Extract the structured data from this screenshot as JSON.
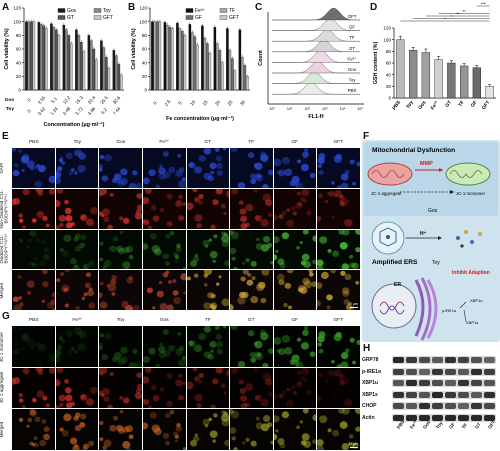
{
  "panel_labels": [
    "A",
    "B",
    "C",
    "D",
    "E",
    "F",
    "G",
    "H"
  ],
  "colors": {
    "gos": "#1b1b1b",
    "toy": "#8a8a8a",
    "gt": "#555555",
    "gft": "#c8c8c8",
    "fe": "#111111",
    "gf": "#707070",
    "tf": "#a8a8a8",
    "bar_d": [
      "#b9b9b9",
      "#8c8c8c",
      "#a1a1a1",
      "#d0d0d0",
      "#777777",
      "#959595",
      "#6a6a6a",
      "#e2e2e2"
    ],
    "dapi": "#1a2f9c",
    "red": "#b8261f",
    "green": "#3a8a2a"
  },
  "chart_data": [
    {
      "panel": "A",
      "type": "bar",
      "ylabel": "Cell viability (%)",
      "xlabel": "Concentration (μg·ml⁻¹)",
      "ylim": [
        0,
        120
      ],
      "yticks": [
        0,
        20,
        40,
        60,
        80,
        100,
        120
      ],
      "row_labels": [
        "Gos",
        "Toy"
      ],
      "gos_ticks": [
        "0",
        "2.55",
        "5.1",
        "10.2",
        "15.3",
        "20.4",
        "25.5",
        "30.6"
      ],
      "toy_ticks": [
        "0",
        "0.62",
        "1.24",
        "2.48",
        "3.72",
        "4.96",
        "6.2",
        "7.44"
      ],
      "legend": [
        "Gos",
        "Toy",
        "GT",
        "GFT"
      ],
      "series": [
        {
          "name": "Gos",
          "values": [
            100,
            99,
            97,
            95,
            88,
            80,
            72,
            58
          ]
        },
        {
          "name": "Toy",
          "values": [
            100,
            96,
            92,
            88,
            80,
            72,
            62,
            50
          ]
        },
        {
          "name": "GT",
          "values": [
            100,
            94,
            88,
            80,
            70,
            60,
            48,
            38
          ]
        },
        {
          "name": "GFT",
          "values": [
            100,
            90,
            80,
            68,
            56,
            44,
            32,
            22
          ]
        }
      ]
    },
    {
      "panel": "B",
      "type": "bar",
      "ylabel": "Cell viability (%)",
      "xlabel": "Fe concentration (μg·ml⁻¹)",
      "ylim": [
        0,
        120
      ],
      "yticks": [
        0,
        20,
        40,
        60,
        80,
        100,
        120
      ],
      "categories": [
        "0",
        "2.5",
        "5",
        "10",
        "15",
        "20",
        "25",
        "30"
      ],
      "legend": [
        "Fe³⁺",
        "TF",
        "GF",
        "GFT"
      ],
      "series": [
        {
          "name": "Fe³⁺",
          "values": [
            100,
            99,
            98,
            96,
            94,
            92,
            90,
            88
          ]
        },
        {
          "name": "TF",
          "values": [
            100,
            95,
            90,
            84,
            76,
            68,
            58,
            48
          ]
        },
        {
          "name": "GF",
          "values": [
            100,
            92,
            86,
            78,
            68,
            58,
            46,
            36
          ]
        },
        {
          "name": "GFT",
          "values": [
            100,
            90,
            80,
            66,
            54,
            40,
            28,
            20
          ]
        }
      ]
    },
    {
      "panel": "C",
      "type": "area",
      "xlabel": "FL1-H",
      "ylabel": "Count",
      "xticks": [
        "10⁰",
        "10¹",
        "10²",
        "10³",
        "10⁴",
        "10⁵"
      ],
      "series": [
        "GFT",
        "GF",
        "TF",
        "GT",
        "Fe³⁺",
        "Gos",
        "Toy",
        "PBS"
      ]
    },
    {
      "panel": "D",
      "type": "bar",
      "ylabel": "GSH content (%)",
      "ylim": [
        0,
        120
      ],
      "yticks": [
        0,
        20,
        40,
        60,
        80,
        100,
        120
      ],
      "categories": [
        "PBS",
        "Toy",
        "Gos",
        "Fe³⁺",
        "GT",
        "TF",
        "GF",
        "GFT"
      ],
      "values": [
        100,
        82,
        78,
        66,
        60,
        55,
        52,
        20
      ],
      "errors": [
        6,
        5,
        6,
        5,
        4,
        4,
        4,
        3
      ],
      "significance": [
        "*",
        "*",
        "**",
        "**",
        "***"
      ]
    },
    {
      "panel": "H",
      "type": "table",
      "rows": [
        "GRP78",
        "p-IRE1α",
        "XBP1u",
        "XBP1s",
        "CHOP",
        "Actin"
      ],
      "columns": [
        "PBS",
        "Fe³⁺",
        "Gos",
        "Toy",
        "GF",
        "TF",
        "GT",
        "GFT"
      ]
    }
  ],
  "panel_e": {
    "columns": [
      "PBS",
      "Toy",
      "Gos",
      "Fe³⁺",
      "GT",
      "TF",
      "GF",
      "GFT"
    ],
    "rows": [
      "DAPI",
      "Non-Oxidized C11-BODIPY⁵⁸¹/⁵⁹¹",
      "Oxidized C11-BODIPY⁵⁸¹/⁵⁹¹",
      "Merged"
    ],
    "scale": "50 μm"
  },
  "panel_g": {
    "columns": [
      "PBS",
      "Fe³⁺",
      "Toy",
      "Gos",
      "TF",
      "GT",
      "GF",
      "GFT"
    ],
    "rows": [
      "JC-1 monomer",
      "JC-1 aggregate",
      "Merged"
    ],
    "scale": "50 μm"
  },
  "panel_f": {
    "title1": "Mitochondrial Dysfunction",
    "mmp": "MMP",
    "jc1_aggregate": "JC-1 aggregate",
    "jc1_monomer": "JC-1 monomer",
    "gos": "Gos",
    "h_plus": "H⁺",
    "title2": "Amplified ERS",
    "toy": "Toy",
    "inhibit": "Inhibit Adaption",
    "er": "ER",
    "ire": "p-IRE1α",
    "xbp1u": "XBP1u",
    "xbp1s": "XBP1s"
  }
}
